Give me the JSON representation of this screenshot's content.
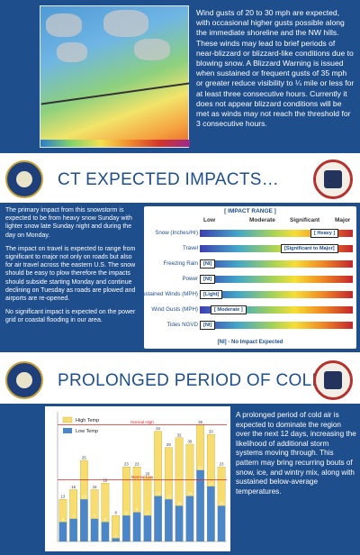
{
  "slide1": {
    "description": "Wind gusts of 20 to 30 mph are expected, with occasional higher gusts possible along the immediate shoreline and the NW hills. These winds may lead to brief periods of near-blizzard or blizzard-like conditions due to blowing snow. A Blizzard Warning is issued when sustained or frequent gusts of 35 mph or greater reduce visibility to ¼ mile or less for at least three consecutive hours. Currently it does not appear blizzard conditions will be met as winds may not reach the threshold for 3 consecutive hours."
  },
  "slide2": {
    "title": "CT EXPECTED IMPACTS…",
    "paragraphs": [
      "The primary impact from this snowstorm is expected to be from heavy snow Sunday with lighter snow late Sunday night and during the day on Monday.",
      "The impact on travel is expected to range from significant to major not only on roads but also for air travel across the eastern U.S. The snow should be easy to plow therefore the impacts should subside starting Monday and continue declining on Tuesday as roads are plowed and airports are re-opened.",
      "No significant impact is expected on the power grid or coastal flooding in our area."
    ],
    "range_title": "[ IMPACT RANGE ]",
    "levels": [
      "Low",
      "Moderate",
      "Significant",
      "Major"
    ],
    "rows": [
      {
        "label": "Snow (Inches/Hr)",
        "marker": "[ Heavy ]",
        "level": 0.82
      },
      {
        "label": "Travel",
        "marker": "[Significant to Major]",
        "level": 0.6
      },
      {
        "label": "Freezing Rain",
        "marker": "[NI]",
        "level": 0.0
      },
      {
        "label": "Power",
        "marker": "[NI]",
        "level": 0.0
      },
      {
        "label": "Sustained Winds (MPH)",
        "marker": "[Light]",
        "level": 0.0
      },
      {
        "label": "Wind Gusts (MPH)",
        "marker": "[ Moderate ]",
        "level": 0.08
      },
      {
        "label": "Tides NGVD",
        "marker": "[NI]",
        "level": 0.0
      }
    ],
    "legend_note": "[NI] - No Impact Expected"
  },
  "slide3": {
    "title": "PROLONGED PERIOD OF COLD…",
    "description": "A prolonged period of cold air is expected to dominate the region over the next 12 days, increasing the likelihood of additional storm systems moving through. This pattern may bring recurring bouts of snow, ice, and wintry mix, along with sustained below-average temperatures."
  },
  "chart_data": {
    "type": "bar",
    "series": [
      {
        "name": "High Temp",
        "color": "#f7dc6f",
        "values": [
          13,
          16,
          25,
          16,
          18,
          8,
          23,
          23,
          20,
          34,
          29,
          32,
          30,
          36,
          33,
          23
        ]
      },
      {
        "name": "Low Temp",
        "color": "#4a86c8",
        "values": [
          6,
          7,
          13,
          7,
          6,
          1,
          8,
          9,
          8,
          14,
          13,
          11,
          14,
          22,
          17,
          11
        ]
      }
    ],
    "reference_lines": [
      {
        "name": "Normal High",
        "value": 36,
        "color": "#d9262c"
      },
      {
        "name": "Normal Low",
        "value": 19,
        "color": "#d9262c"
      }
    ],
    "ylim": [
      0,
      40
    ],
    "legend": "top-left",
    "grid": false
  }
}
